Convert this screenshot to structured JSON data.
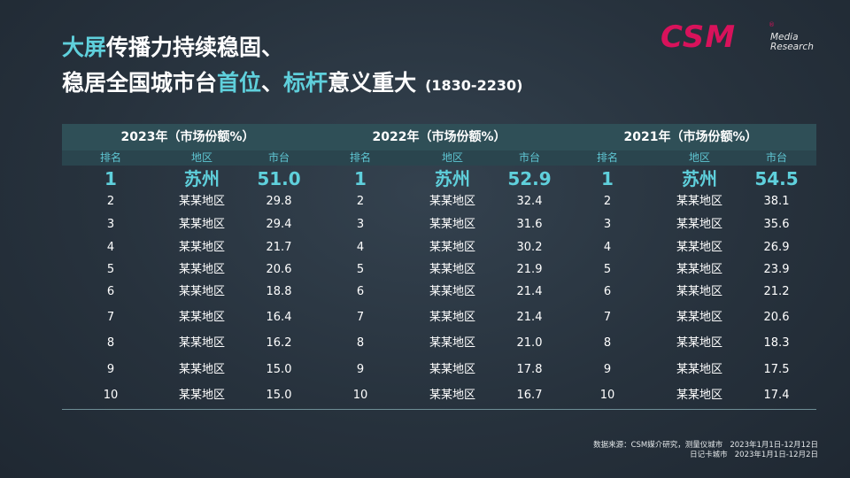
{
  "title": {
    "line1": "大屏传播力持续稳固、",
    "line2_part1": "稳居全国城市台",
    "line2_hl1": "首位",
    "line2_sep": "、",
    "line2_hl2": "标杆",
    "line2_part2": "意义重大",
    "time_range": "(1830-2230)"
  },
  "logo": {
    "text": "CSM",
    "reg": "®",
    "line1": "Media",
    "line2": "Research"
  },
  "table": {
    "years": [
      "2023年（市场份额%）",
      "2022年（市场份额%）",
      "2021年（市场份额%）"
    ],
    "subheaders": [
      "排名",
      "地区",
      "市台",
      "排名",
      "地区",
      "市台",
      "排名",
      "地区",
      "市台"
    ],
    "rows": [
      [
        "1",
        "苏州",
        "51.0",
        "1",
        "苏州",
        "52.9",
        "1",
        "苏州",
        "54.5"
      ],
      [
        "2",
        "某某地区",
        "29.8",
        "2",
        "某某地区",
        "32.4",
        "2",
        "某某地区",
        "38.1"
      ],
      [
        "3",
        "某某地区",
        "29.4",
        "3",
        "某某地区",
        "31.6",
        "3",
        "某某地区",
        "35.6"
      ],
      [
        "4",
        "某某地区",
        "21.7",
        "4",
        "某某地区",
        "30.2",
        "4",
        "某某地区",
        "26.9"
      ],
      [
        "5",
        "某某地区",
        "20.6",
        "5",
        "某某地区",
        "21.9",
        "5",
        "某某地区",
        "23.9"
      ],
      [
        "6",
        "某某地区",
        "18.8",
        "6",
        "某某地区",
        "21.4",
        "6",
        "某某地区",
        "21.2"
      ],
      [
        "7",
        "某某地区",
        "16.4",
        "7",
        "某某地区",
        "21.4",
        "7",
        "某某地区",
        "20.6"
      ],
      [
        "8",
        "某某地区",
        "16.2",
        "8",
        "某某地区",
        "21.0",
        "8",
        "某某地区",
        "18.3"
      ],
      [
        "9",
        "某某地区",
        "15.0",
        "9",
        "某某地区",
        "17.8",
        "9",
        "某某地区",
        "17.5"
      ],
      [
        "10",
        "某某地区",
        "15.0",
        "10",
        "某某地区",
        "16.7",
        "10",
        "某某地区",
        "17.4"
      ]
    ]
  },
  "source": {
    "line1": "数据来源：CSM媒介研究，测量仪城市   2023年1月1日-12月12日",
    "line2": "日记卡城市   2023年1月1日-12月2日"
  }
}
